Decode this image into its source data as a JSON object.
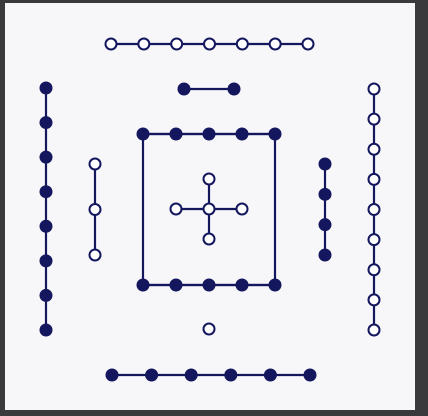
{
  "style": {
    "ink": "#14175e",
    "panel_bg": "#f7f7f9",
    "frame_bg": "#3a3a3c",
    "open_fill": "#ffffff"
  },
  "diagram": {
    "groups": [
      {
        "id": "top-row-open",
        "orientation": "horizontal",
        "count": 7,
        "filled": false
      },
      {
        "id": "short-bar-filled",
        "orientation": "horizontal",
        "count": 2,
        "filled": true
      },
      {
        "id": "left-column-filled",
        "orientation": "vertical",
        "count": 8,
        "filled": true
      },
      {
        "id": "inner-left-column-open",
        "orientation": "vertical",
        "count": 3,
        "filled": false
      },
      {
        "id": "square-top-filled",
        "orientation": "horizontal",
        "count": 5,
        "filled": true
      },
      {
        "id": "square-bottom-filled",
        "orientation": "horizontal",
        "count": 5,
        "filled": true
      },
      {
        "id": "center-cross-open",
        "orientation": "cross",
        "count": 5,
        "filled": false
      },
      {
        "id": "inner-right-column-filled",
        "orientation": "vertical",
        "count": 4,
        "filled": true
      },
      {
        "id": "right-column-open",
        "orientation": "vertical",
        "count": 9,
        "filled": false
      },
      {
        "id": "single-node-open",
        "orientation": "single",
        "count": 1,
        "filled": false
      },
      {
        "id": "bottom-row-filled",
        "orientation": "horizontal",
        "count": 6,
        "filled": true
      }
    ]
  }
}
